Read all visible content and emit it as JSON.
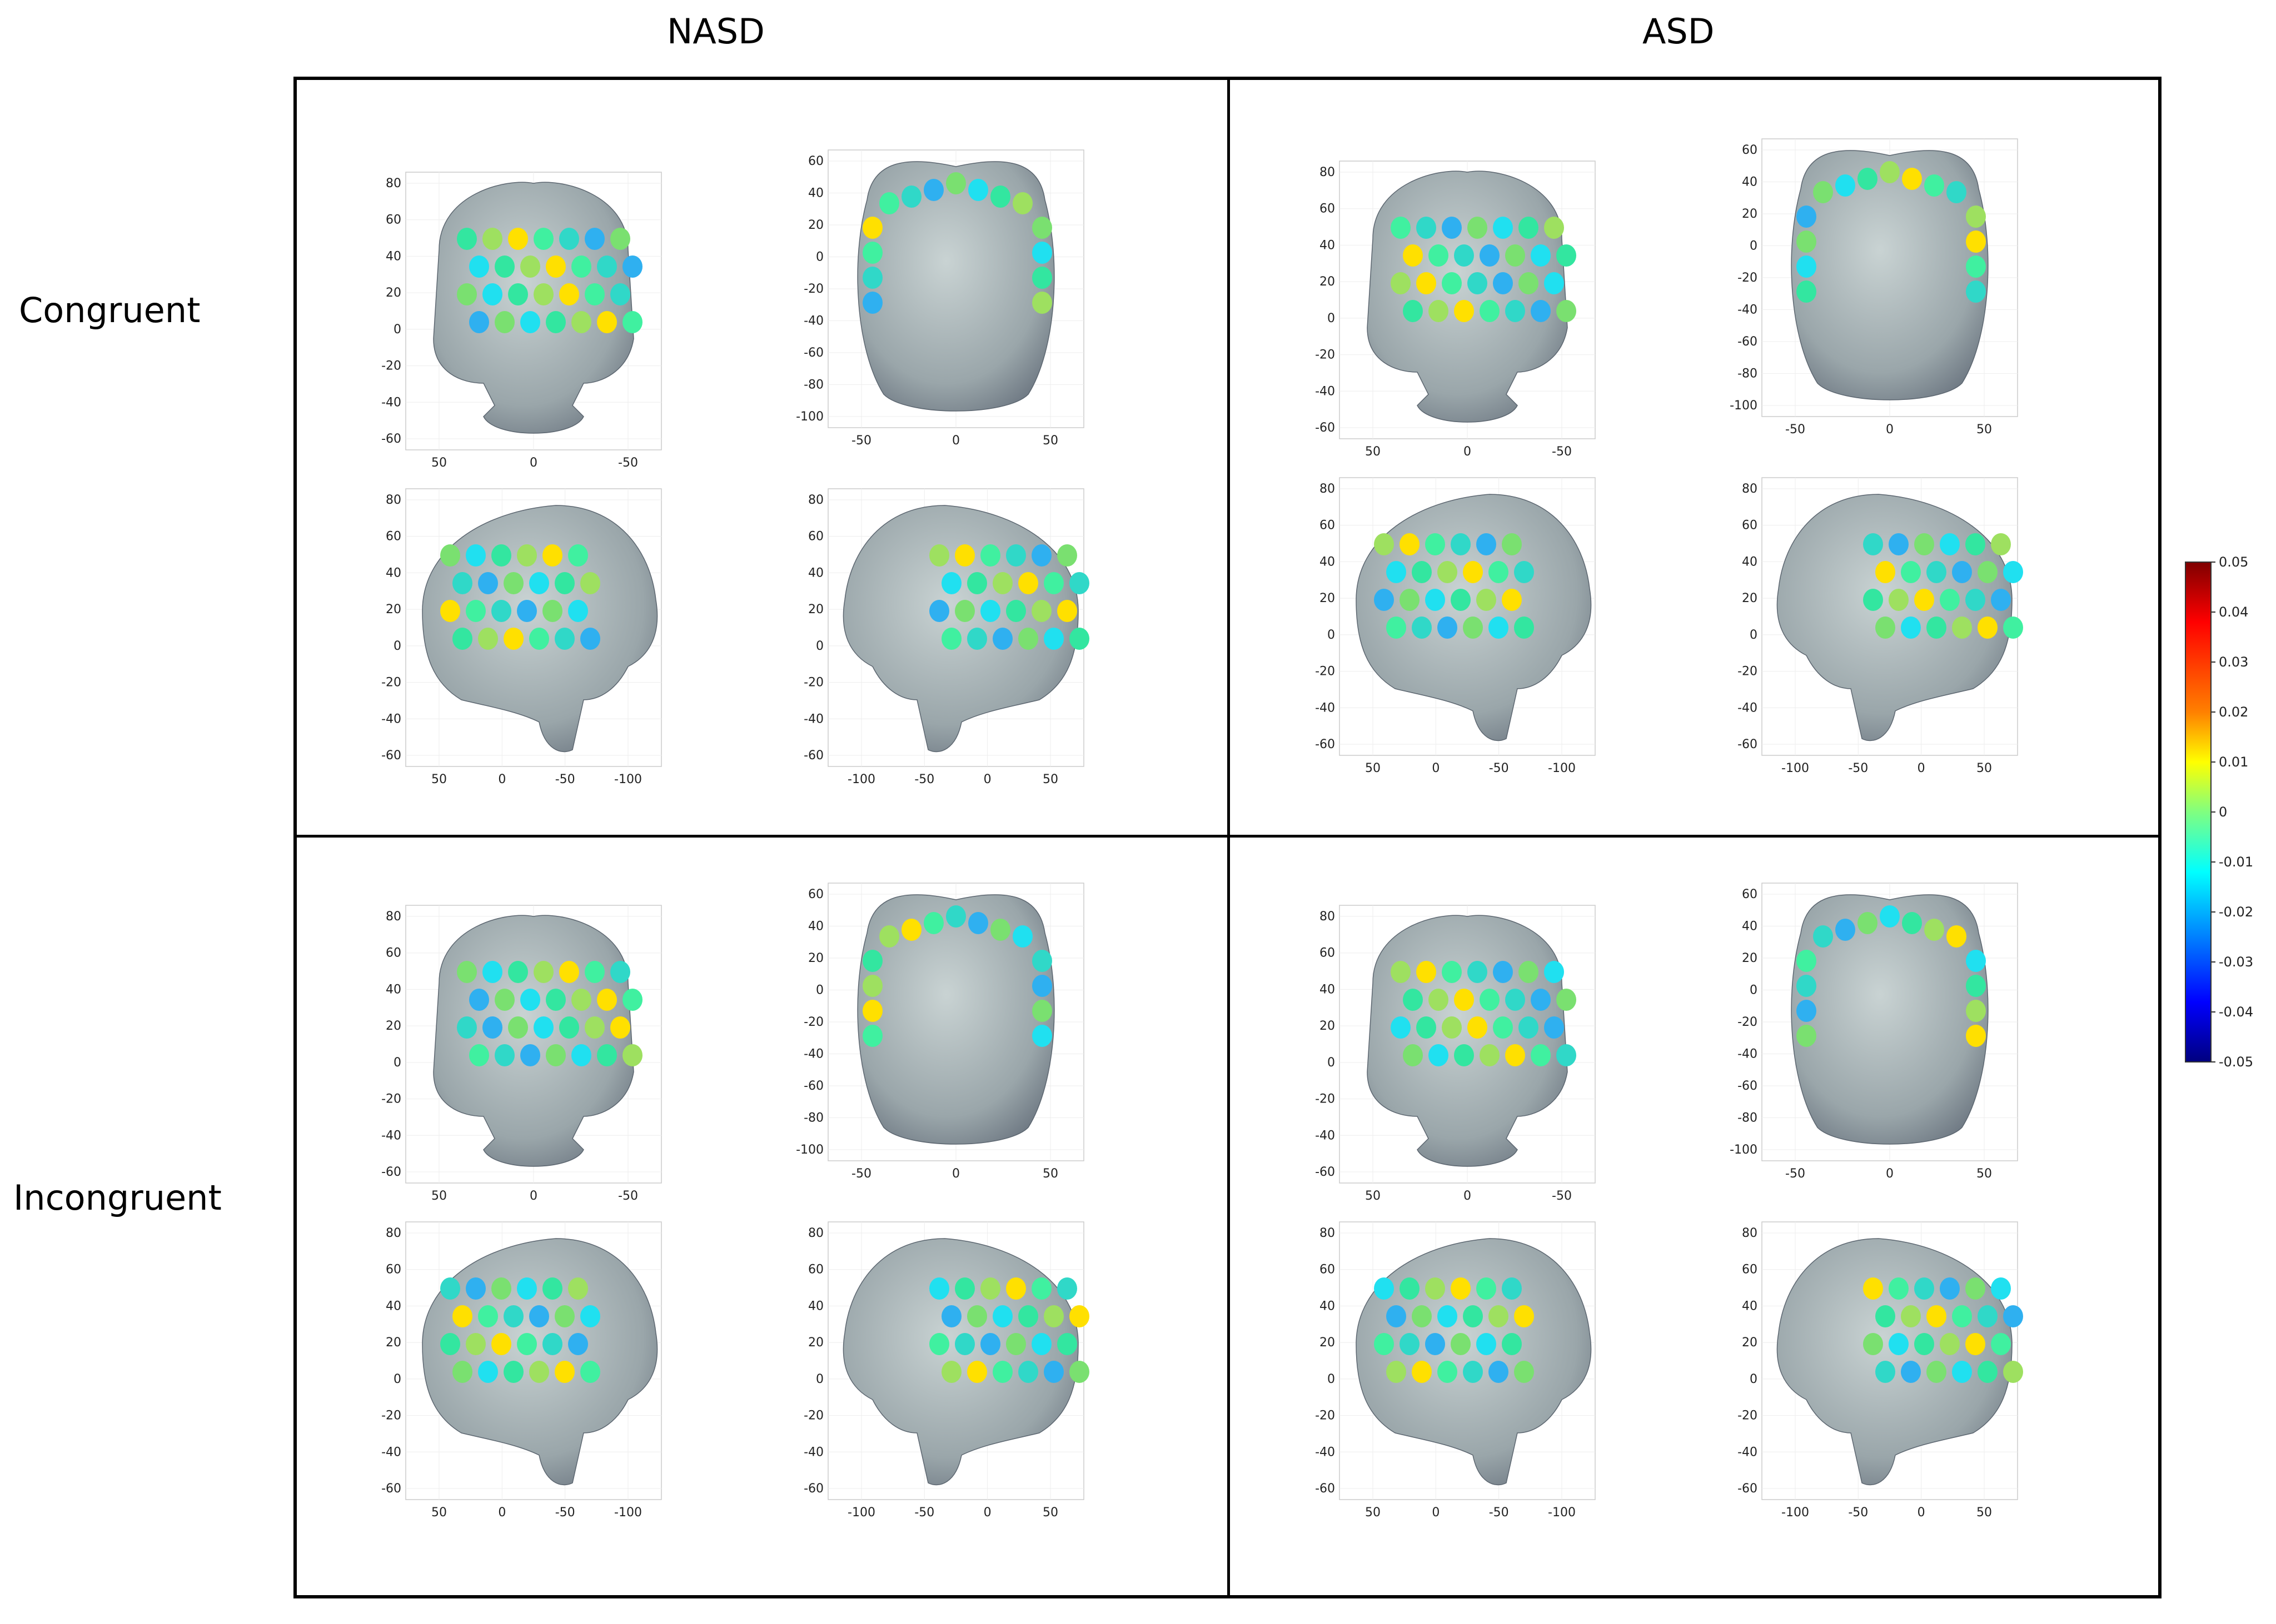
{
  "columns": [
    "NASD",
    "ASD"
  ],
  "rows": [
    "Congruent",
    "Incongruent"
  ],
  "views": {
    "front": {
      "x_ticks": [
        "50",
        "0",
        "-50"
      ],
      "y_ticks": [
        "80",
        "60",
        "40",
        "20",
        "0",
        "-20",
        "-40",
        "-60"
      ]
    },
    "top": {
      "x_ticks": [
        "-50",
        "0",
        "50"
      ],
      "y_ticks": [
        "60",
        "40",
        "20",
        "0",
        "-20",
        "-40",
        "-60",
        "-80",
        "-100"
      ]
    },
    "left": {
      "x_ticks": [
        "50",
        "0",
        "-50",
        "-100"
      ],
      "y_ticks": [
        "80",
        "60",
        "40",
        "20",
        "0",
        "-20",
        "-40",
        "-60"
      ]
    },
    "right": {
      "x_ticks": [
        "-100",
        "-50",
        "0",
        "50"
      ],
      "y_ticks": [
        "80",
        "60",
        "40",
        "20",
        "0",
        "-20",
        "-40",
        "-60"
      ]
    }
  },
  "colorbar": {
    "ticks": [
      "0.05",
      "0.04",
      "0.03",
      "0.02",
      "0.01",
      "0",
      "-0.01",
      "-0.02",
      "-0.03",
      "-0.04",
      "-0.05"
    ],
    "colormap": [
      "#7f0000",
      "#ff0000",
      "#ff8000",
      "#ffff00",
      "#80ff80",
      "#00ffff",
      "#0080ff",
      "#0000ff",
      "#00007f"
    ]
  }
}
